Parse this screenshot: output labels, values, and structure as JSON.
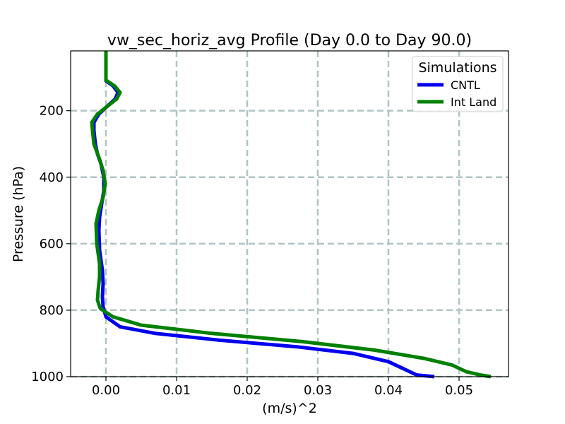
{
  "chart_data": {
    "type": "line",
    "title": "vw_sec_horiz_avg Profile (Day 0.0 to Day 90.0)",
    "xlabel": "(m/s)^2",
    "ylabel": "Pressure (hPa)",
    "xlim": [
      -0.005,
      0.057
    ],
    "ylim": [
      1000,
      20
    ],
    "y_inverted": true,
    "grid": true,
    "x_ticks": [
      0.0,
      0.01,
      0.02,
      0.03,
      0.04,
      0.05
    ],
    "x_tick_labels": [
      "0.00",
      "0.01",
      "0.02",
      "0.03",
      "0.04",
      "0.05"
    ],
    "y_ticks": [
      200,
      400,
      600,
      800,
      1000
    ],
    "y_tick_labels": [
      "200",
      "400",
      "600",
      "800",
      "1000"
    ],
    "legend": {
      "title": "Simulations",
      "placement": "top-right"
    },
    "colors": {
      "CNTL": "#0000ee",
      "Int Land": "#008000",
      "grid": "#b0c4c4"
    },
    "series": [
      {
        "name": "CNTL",
        "points": [
          {
            "x": 0.0,
            "p": 20
          },
          {
            "x": 0.0,
            "p": 70
          },
          {
            "x": 0.0,
            "p": 110
          },
          {
            "x": 0.001,
            "p": 125
          },
          {
            "x": 0.0017,
            "p": 145
          },
          {
            "x": 0.0013,
            "p": 165
          },
          {
            "x": 0.0,
            "p": 190
          },
          {
            "x": -0.001,
            "p": 210
          },
          {
            "x": -0.0017,
            "p": 235
          },
          {
            "x": -0.0017,
            "p": 260
          },
          {
            "x": -0.0015,
            "p": 300
          },
          {
            "x": -0.0012,
            "p": 330
          },
          {
            "x": -0.0007,
            "p": 360
          },
          {
            "x": -0.0003,
            "p": 400
          },
          {
            "x": -0.0003,
            "p": 440
          },
          {
            "x": -0.0006,
            "p": 480
          },
          {
            "x": -0.0009,
            "p": 520
          },
          {
            "x": -0.001,
            "p": 560
          },
          {
            "x": -0.0009,
            "p": 620
          },
          {
            "x": -0.0005,
            "p": 680
          },
          {
            "x": -0.0004,
            "p": 720
          },
          {
            "x": -0.0005,
            "p": 760
          },
          {
            "x": -0.0004,
            "p": 790
          },
          {
            "x": 0.0,
            "p": 820
          },
          {
            "x": 0.002,
            "p": 850
          },
          {
            "x": 0.007,
            "p": 870
          },
          {
            "x": 0.016,
            "p": 890
          },
          {
            "x": 0.027,
            "p": 910
          },
          {
            "x": 0.035,
            "p": 930
          },
          {
            "x": 0.04,
            "p": 955
          },
          {
            "x": 0.042,
            "p": 975
          },
          {
            "x": 0.044,
            "p": 995
          },
          {
            "x": 0.0465,
            "p": 1000
          }
        ]
      },
      {
        "name": "Int Land",
        "points": [
          {
            "x": 0.0,
            "p": 20
          },
          {
            "x": 0.0,
            "p": 70
          },
          {
            "x": 0.0,
            "p": 108
          },
          {
            "x": 0.0012,
            "p": 125
          },
          {
            "x": 0.002,
            "p": 145
          },
          {
            "x": 0.0015,
            "p": 165
          },
          {
            "x": 0.0,
            "p": 190
          },
          {
            "x": -0.0012,
            "p": 210
          },
          {
            "x": -0.002,
            "p": 235
          },
          {
            "x": -0.0019,
            "p": 260
          },
          {
            "x": -0.0017,
            "p": 300
          },
          {
            "x": -0.001,
            "p": 340
          },
          {
            "x": -0.0004,
            "p": 380
          },
          {
            "x": -0.0001,
            "p": 420
          },
          {
            "x": -0.0004,
            "p": 460
          },
          {
            "x": -0.001,
            "p": 500
          },
          {
            "x": -0.0014,
            "p": 540
          },
          {
            "x": -0.0013,
            "p": 600
          },
          {
            "x": -0.0009,
            "p": 660
          },
          {
            "x": -0.0009,
            "p": 700
          },
          {
            "x": -0.0011,
            "p": 740
          },
          {
            "x": -0.0012,
            "p": 770
          },
          {
            "x": -0.0008,
            "p": 795
          },
          {
            "x": 0.001,
            "p": 820
          },
          {
            "x": 0.005,
            "p": 845
          },
          {
            "x": 0.015,
            "p": 870
          },
          {
            "x": 0.028,
            "p": 895
          },
          {
            "x": 0.038,
            "p": 920
          },
          {
            "x": 0.045,
            "p": 945
          },
          {
            "x": 0.049,
            "p": 965
          },
          {
            "x": 0.051,
            "p": 985
          },
          {
            "x": 0.053,
            "p": 995
          },
          {
            "x": 0.0545,
            "p": 1000
          }
        ]
      }
    ]
  }
}
